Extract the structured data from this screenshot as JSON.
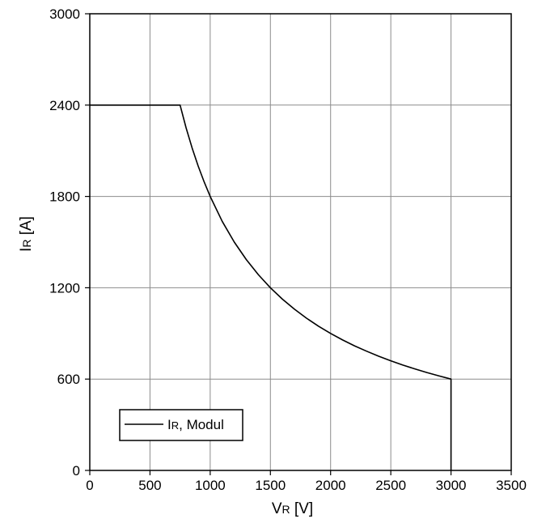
{
  "chart_data": {
    "type": "line",
    "xlabel": {
      "main": "V",
      "sub": "R",
      "unit": " [V]"
    },
    "ylabel": {
      "main": "I",
      "sub": "R",
      "unit": " [A]"
    },
    "xlim": [
      0,
      3500
    ],
    "ylim": [
      0,
      3000
    ],
    "xticks": [
      "0",
      "500",
      "1000",
      "1500",
      "2000",
      "2500",
      "3000",
      "3500"
    ],
    "yticks": [
      "0",
      "600",
      "1200",
      "1800",
      "2400",
      "3000"
    ],
    "grid": true,
    "legend_position": "bottom-left",
    "series": [
      {
        "name": {
          "main": "I",
          "sub": "R",
          "suffix": ", Modul"
        },
        "color": "#000000",
        "x": [
          0,
          750,
          800,
          850,
          900,
          950,
          1000,
          1100,
          1200,
          1300,
          1400,
          1500,
          1600,
          1700,
          1800,
          1900,
          2000,
          2100,
          2200,
          2300,
          2400,
          2500,
          2600,
          2700,
          2800,
          2900,
          3000,
          3000
        ],
        "y": [
          2400,
          2400,
          2250,
          2118,
          2000,
          1895,
          1800,
          1636,
          1500,
          1385,
          1286,
          1200,
          1125,
          1059,
          1000,
          947,
          900,
          857,
          818,
          783,
          750,
          720,
          692,
          667,
          643,
          621,
          600,
          0
        ]
      }
    ]
  }
}
